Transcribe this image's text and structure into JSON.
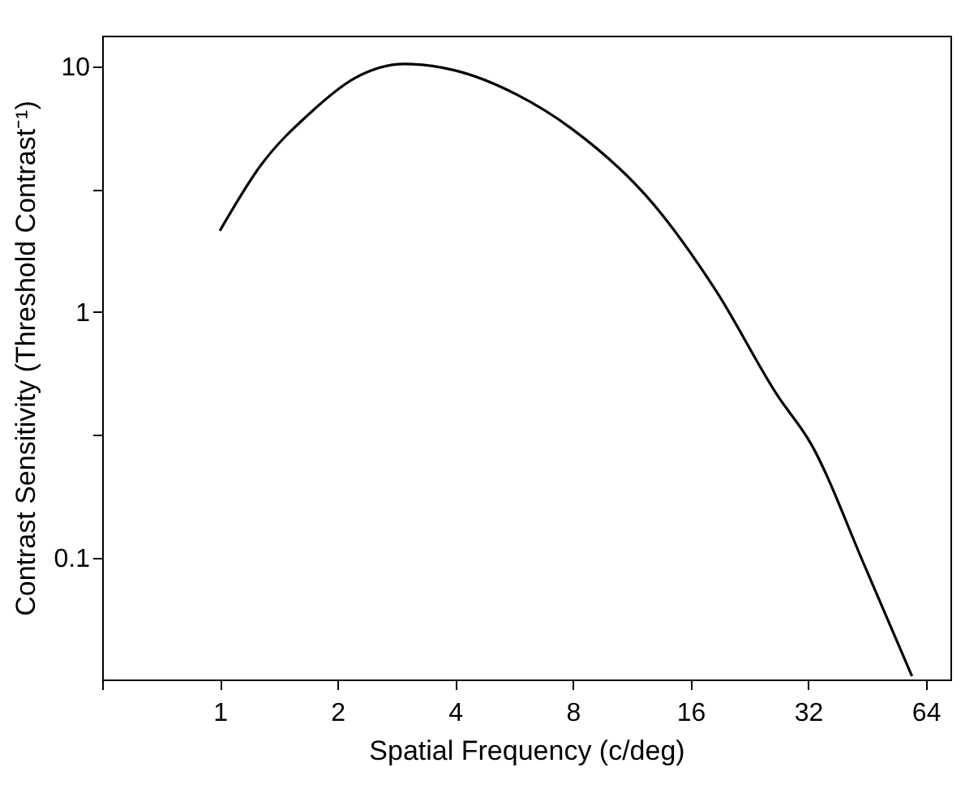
{
  "chart_data": {
    "type": "line",
    "xlabel": "Spatial Frequency (c/deg)",
    "ylabel": "Contrast Sensitivity (Threshold Contrast⁻¹)",
    "x": [
      1,
      1.27,
      1.71,
      2.21,
      2.97,
      3.96,
      5.75,
      7.94,
      12.8,
      18.6,
      26.8,
      32.5,
      44.9,
      59
    ],
    "series": [
      {
        "color": "#000000",
        "values": [
          2.14,
          3.93,
          6.49,
          8.92,
          10.2,
          9.64,
          7.66,
          5.57,
          2.77,
          1.22,
          0.454,
          0.292,
          0.0908,
          0.033
        ]
      }
    ],
    "log": "xy",
    "xlim": [
      0.5,
      74
    ],
    "ylim": [
      0.032,
      13.3
    ],
    "xticks": [
      {
        "value": 0.5,
        "label": null
      },
      1,
      2,
      4,
      8,
      16,
      32,
      64
    ],
    "yticks": [
      0.1,
      {
        "value": 0.316,
        "label": null
      },
      1,
      {
        "value": 3.16,
        "label": null
      },
      10
    ],
    "marker": "none",
    "line_style": "solid"
  }
}
